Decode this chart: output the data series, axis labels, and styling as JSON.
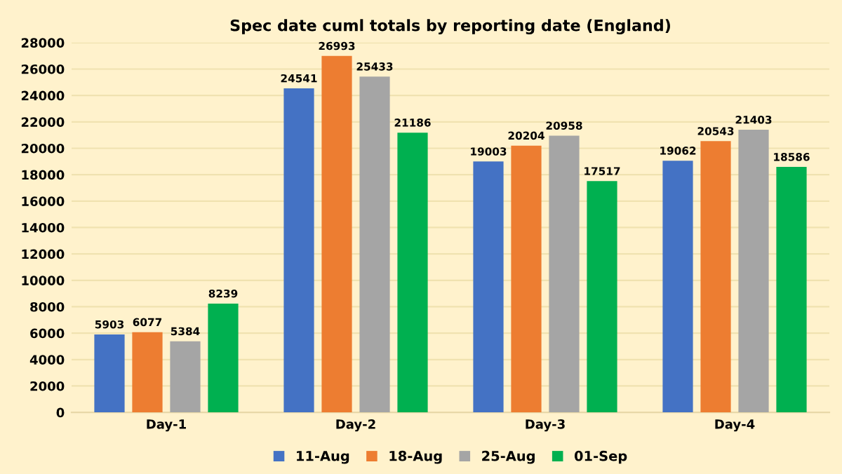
{
  "chart_data": {
    "type": "bar",
    "title": "Spec date cuml totals by reporting date (England)",
    "categories": [
      "Day-1",
      "Day-2",
      "Day-3",
      "Day-4"
    ],
    "series": [
      {
        "name": "11-Aug",
        "color": "#4472c4",
        "values": [
          5903,
          24541,
          19003,
          19062
        ]
      },
      {
        "name": "18-Aug",
        "color": "#ed7d31",
        "values": [
          6077,
          26993,
          20204,
          20543
        ]
      },
      {
        "name": "25-Aug",
        "color": "#a5a5a5",
        "values": [
          5384,
          25433,
          20958,
          21403
        ]
      },
      {
        "name": "01-Sep",
        "color": "#00b050",
        "values": [
          8239,
          21186,
          17517,
          18586
        ]
      }
    ],
    "ylim": [
      0,
      28000
    ],
    "yticks": [
      0,
      2000,
      4000,
      6000,
      8000,
      10000,
      12000,
      14000,
      16000,
      18000,
      20000,
      22000,
      24000,
      26000,
      28000
    ],
    "grid": "y",
    "legend": "bottom",
    "data_labels": true
  }
}
